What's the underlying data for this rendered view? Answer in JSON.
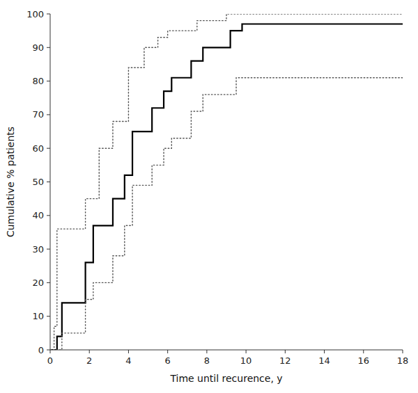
{
  "chart_data": {
    "type": "step",
    "xlabel": "Time until recurence, y",
    "ylabel": "Cumulative % patients",
    "xlim": [
      0,
      18
    ],
    "ylim": [
      0,
      100
    ],
    "xticks": [
      0,
      2,
      4,
      6,
      8,
      10,
      12,
      14,
      16,
      18
    ],
    "yticks": [
      0,
      10,
      20,
      30,
      40,
      50,
      60,
      70,
      80,
      90,
      100
    ],
    "grid": false,
    "series": [
      {
        "color": "#000000",
        "line_style": "solid",
        "x": [
          0,
          0.35,
          0.6,
          1.8,
          2.2,
          3.2,
          3.8,
          4.2,
          5.2,
          5.8,
          6.2,
          7.2,
          7.8,
          8.5,
          9.2,
          9.8,
          18.0
        ],
        "values": [
          0,
          4,
          14,
          26,
          37,
          45,
          52,
          65,
          72,
          77,
          81,
          86,
          90,
          90,
          95,
          97,
          97
        ]
      },
      {
        "color": "#555555",
        "line_style": "dotted",
        "x": [
          0,
          0.2,
          0.35,
          1.0,
          1.8,
          2.5,
          3.2,
          4.0,
          4.8,
          5.5,
          6.0,
          6.8,
          7.5,
          8.2,
          9.0,
          9.5,
          18.0
        ],
        "values": [
          0,
          7,
          36,
          36,
          45,
          60,
          68,
          84,
          90,
          93,
          95,
          95,
          98,
          98,
          100,
          100,
          100
        ]
      },
      {
        "color": "#555555",
        "line_style": "dotted",
        "x": [
          0,
          0.35,
          0.6,
          1.8,
          2.2,
          3.2,
          3.8,
          4.2,
          5.2,
          5.8,
          6.2,
          7.2,
          7.8,
          9.5,
          18.0
        ],
        "values": [
          0,
          0,
          5,
          15,
          20,
          28,
          37,
          49,
          55,
          60,
          63,
          71,
          76,
          81,
          81
        ]
      }
    ]
  }
}
